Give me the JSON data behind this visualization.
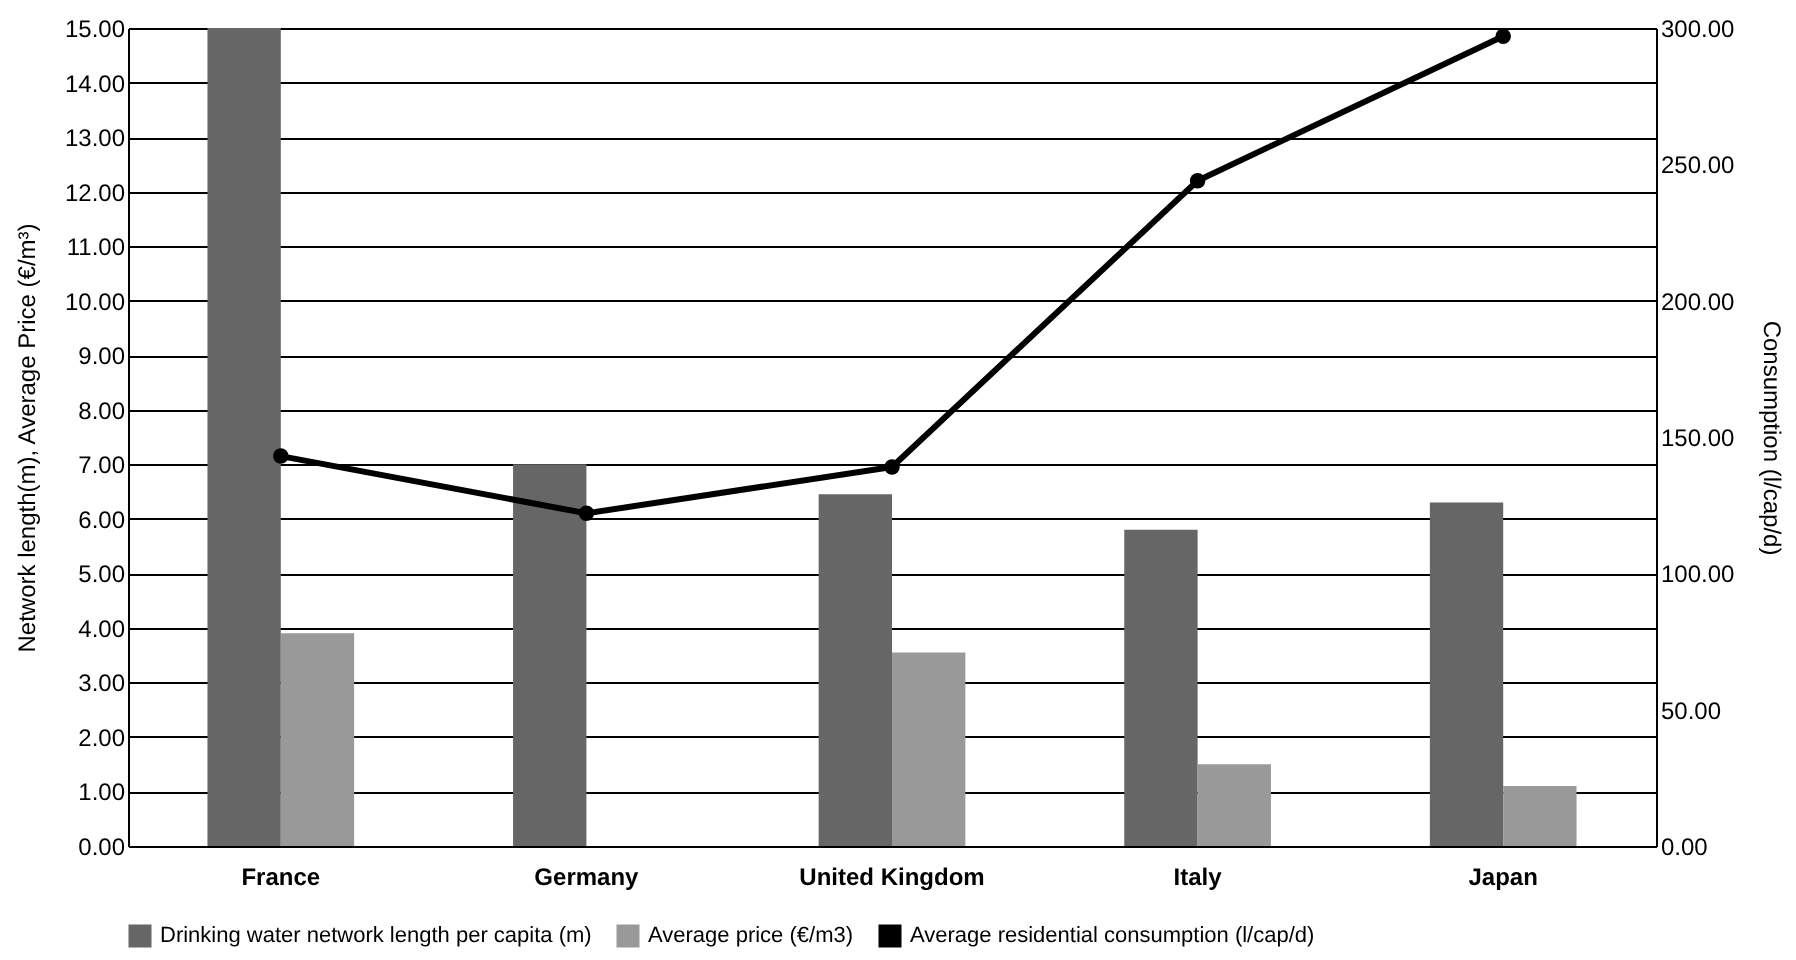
{
  "chart_data": {
    "type": "bar",
    "ylabel": "Network length(m), Average Price (€/m³)",
    "y2label": "Consumption (l/cap/d)",
    "categories": [
      "France",
      "Germany",
      "United Kingdom",
      "Italy",
      "Japan"
    ],
    "series": [
      {
        "name": "Drinking water network length per capita (m)",
        "color": "#666666",
        "values": [
          15.0,
          7.0,
          6.45,
          5.8,
          6.3
        ]
      },
      {
        "name": "Average price (€/m3)",
        "color": "#999999",
        "values": [
          3.9,
          null,
          3.55,
          1.5,
          1.1
        ]
      },
      {
        "name": "Average residential consumption (l/cap/d)",
        "type": "line",
        "axis": "y2",
        "color": "#000000",
        "marker": "circle",
        "values": [
          143,
          122,
          139,
          244,
          297
        ]
      }
    ],
    "ylim": [
      0,
      15
    ],
    "yticks": [
      {
        "value": 0,
        "label": "0.00"
      },
      {
        "value": 1,
        "label": "1.00"
      },
      {
        "value": 2,
        "label": "2.00"
      },
      {
        "value": 3,
        "label": "3.00"
      },
      {
        "value": 4,
        "label": "4.00"
      },
      {
        "value": 5,
        "label": "5.00"
      },
      {
        "value": 6,
        "label": "6.00"
      },
      {
        "value": 7,
        "label": "7.00"
      },
      {
        "value": 8,
        "label": "8.00"
      },
      {
        "value": 9,
        "label": "9.00"
      },
      {
        "value": 10,
        "label": "10.00"
      },
      {
        "value": 11,
        "label": "11.00"
      },
      {
        "value": 12,
        "label": "12.00"
      },
      {
        "value": 13,
        "label": "13.00"
      },
      {
        "value": 14,
        "label": "14.00"
      },
      {
        "value": 15,
        "label": "15.00"
      }
    ],
    "y2lim": [
      0,
      300
    ],
    "y2ticks": [
      {
        "value": 0,
        "label": "0.00"
      },
      {
        "value": 50,
        "label": "50.00"
      },
      {
        "value": 100,
        "label": "100.00"
      },
      {
        "value": 150,
        "label": "150.00"
      },
      {
        "value": 200,
        "label": "200.00"
      },
      {
        "value": 250,
        "label": "250.00"
      },
      {
        "value": 300,
        "label": "300.00"
      }
    ],
    "grid": "y",
    "legend": "bottom"
  }
}
